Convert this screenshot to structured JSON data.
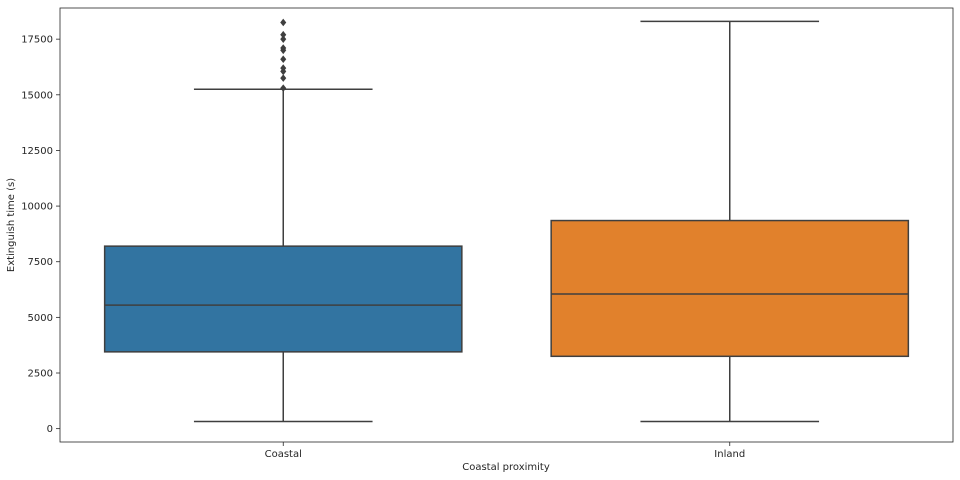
{
  "chart_data": {
    "type": "box",
    "xlabel": "Coastal proximity",
    "ylabel": "Extinguish time (s)",
    "ylim": [
      -600,
      18900
    ],
    "yticks": [
      0,
      2500,
      5000,
      7500,
      10000,
      12500,
      15000,
      17500
    ],
    "ytick_labels": [
      "0",
      "2500",
      "5000",
      "7500",
      "10000",
      "12500",
      "15000",
      "17500"
    ],
    "grid": false,
    "categories": [
      "Coastal",
      "Inland"
    ],
    "boxes": [
      {
        "category": "Coastal",
        "color": "#3274a1",
        "whisker_low": 320,
        "q1": 3450,
        "median": 5550,
        "q3": 8200,
        "whisker_high": 15250,
        "outliers": [
          15300,
          15750,
          16050,
          16200,
          16600,
          17000,
          17100,
          17500,
          17700,
          18250
        ]
      },
      {
        "category": "Inland",
        "color": "#e1812c",
        "whisker_low": 320,
        "q1": 3250,
        "median": 6050,
        "q3": 9350,
        "whisker_high": 18300,
        "outliers": []
      }
    ]
  }
}
